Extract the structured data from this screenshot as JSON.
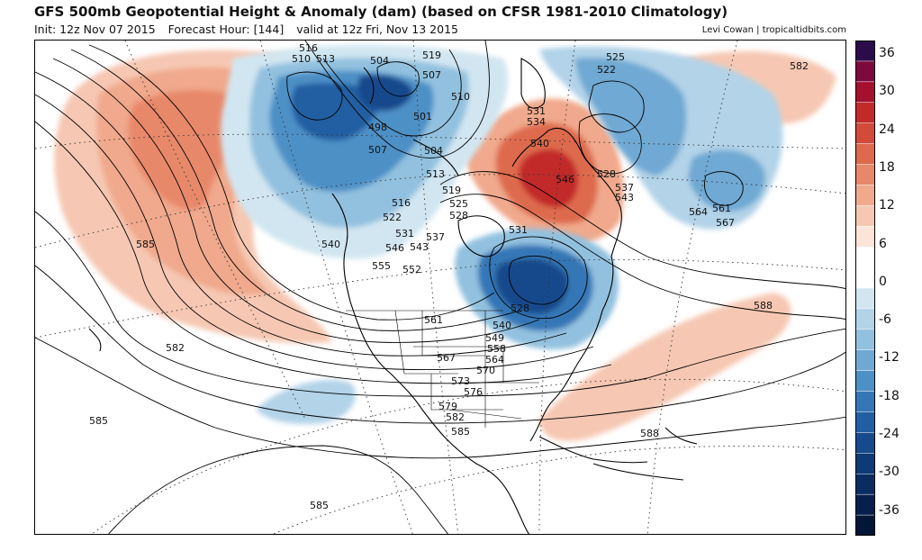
{
  "header": {
    "title": "GFS 500mb Geopotential Height & Anomaly (dam) (based on CFSR 1981-2010 Climatology)",
    "init": "Init: 12z Nov 07 2015",
    "forecast_hour": "Forecast Hour: [144]",
    "valid": "valid at 12z Fri, Nov 13 2015",
    "credit": "Levi Cowan | tropicaltidbits.com"
  },
  "colorbar": {
    "labels": [
      "36",
      "30",
      "24",
      "18",
      "12",
      "6",
      "0",
      "-6",
      "-12",
      "-18",
      "-24",
      "-30",
      "-36"
    ],
    "colors": [
      "#2c0b4a",
      "#7d0a3c",
      "#a4102d",
      "#c22a2a",
      "#d14a3a",
      "#de6a4d",
      "#e8886a",
      "#f0a98c",
      "#f6c8b3",
      "#fde4d8",
      "#ffffff",
      "#ffffff",
      "#d2e6f1",
      "#b2d3e8",
      "#92c1df",
      "#6fa9d3",
      "#4d90c6",
      "#3577b6",
      "#215fa2",
      "#164a8c",
      "#0e3a76",
      "#0a2c60",
      "#07204b",
      "#041637"
    ]
  },
  "contour_labels": [
    "516",
    "510",
    "513",
    "504",
    "519",
    "525",
    "522",
    "582",
    "507",
    "510",
    "531",
    "534",
    "501",
    "498",
    "540",
    "507",
    "504",
    "546",
    "528",
    "537",
    "543",
    "513",
    "519",
    "525",
    "528",
    "516",
    "522",
    "564",
    "561",
    "567",
    "585",
    "531",
    "537",
    "540",
    "546",
    "543",
    "555",
    "552",
    "531",
    "528",
    "588",
    "561",
    "540",
    "549",
    "558",
    "564",
    "567",
    "570",
    "573",
    "576",
    "582",
    "579",
    "582",
    "585",
    "585",
    "588",
    "585"
  ],
  "legend_colors": {
    "positive_anomaly": "#e8886a",
    "negative_anomaly": "#4d90c6",
    "land": "#ffffff"
  }
}
